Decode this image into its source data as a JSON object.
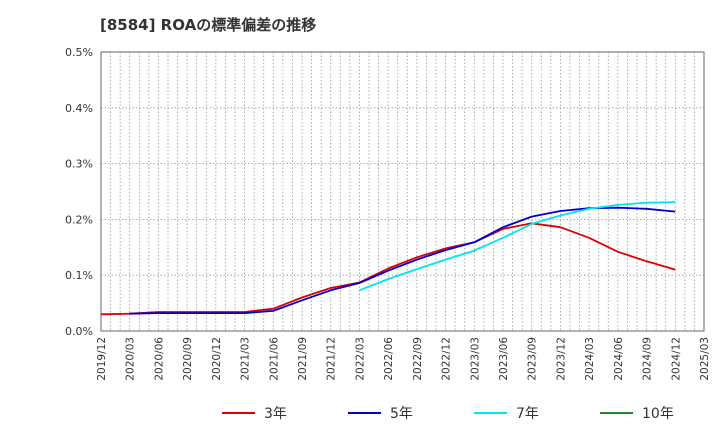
{
  "chart_data": {
    "type": "line",
    "title": "[8584]  ROAの標準偏差の推移",
    "xlabel": "",
    "ylabel": "",
    "ylim": [
      0,
      0.5
    ],
    "y_ticks": [
      "0.0%",
      "0.1%",
      "0.2%",
      "0.3%",
      "0.4%",
      "0.5%"
    ],
    "y_tick_values": [
      0,
      0.1,
      0.2,
      0.3,
      0.4,
      0.5
    ],
    "x_ticks": [
      "2019/12",
      "2020/03",
      "2020/06",
      "2020/09",
      "2020/12",
      "2021/03",
      "2021/06",
      "2021/09",
      "2021/12",
      "2022/03",
      "2022/06",
      "2022/09",
      "2022/12",
      "2023/03",
      "2023/06",
      "2023/09",
      "2023/12",
      "2024/03",
      "2024/06",
      "2024/09",
      "2024/12",
      "2025/03"
    ],
    "grid": true,
    "legend_position": "bottom",
    "series": [
      {
        "name": "3年",
        "color": "#dd0000",
        "x": [
          "2019/12",
          "2020/03",
          "2020/06",
          "2020/09",
          "2020/12",
          "2021/03",
          "2021/06",
          "2021/09",
          "2021/12",
          "2022/03",
          "2022/06",
          "2022/09",
          "2022/12",
          "2023/03",
          "2023/06",
          "2023/09",
          "2023/12",
          "2024/03",
          "2024/06",
          "2024/09",
          "2024/12"
        ],
        "values": [
          0.03,
          0.031,
          0.034,
          0.034,
          0.034,
          0.034,
          0.04,
          0.06,
          0.077,
          0.087,
          0.112,
          0.132,
          0.148,
          0.159,
          0.183,
          0.193,
          0.186,
          0.167,
          0.142,
          0.125,
          0.11
        ]
      },
      {
        "name": "5年",
        "color": "#0000cc",
        "x": [
          "2020/03",
          "2020/06",
          "2020/09",
          "2020/12",
          "2021/03",
          "2021/06",
          "2021/09",
          "2021/12",
          "2022/03",
          "2022/06",
          "2022/09",
          "2022/12",
          "2023/03",
          "2023/06",
          "2023/09",
          "2023/12",
          "2024/03",
          "2024/06",
          "2024/09",
          "2024/12"
        ],
        "values": [
          0.031,
          0.032,
          0.032,
          0.032,
          0.032,
          0.036,
          0.055,
          0.073,
          0.086,
          0.108,
          0.128,
          0.145,
          0.159,
          0.186,
          0.205,
          0.215,
          0.22,
          0.221,
          0.219,
          0.214
        ]
      },
      {
        "name": "7年",
        "color": "#00e5ee",
        "x": [
          "2022/03",
          "2022/06",
          "2022/09",
          "2022/12",
          "2023/03",
          "2023/06",
          "2023/09",
          "2023/12",
          "2024/03",
          "2024/06",
          "2024/09",
          "2024/12"
        ],
        "values": [
          0.073,
          0.093,
          0.111,
          0.128,
          0.144,
          0.167,
          0.192,
          0.207,
          0.219,
          0.226,
          0.23,
          0.231
        ]
      },
      {
        "name": "10年",
        "color": "#228b22",
        "x": [],
        "values": []
      }
    ]
  }
}
